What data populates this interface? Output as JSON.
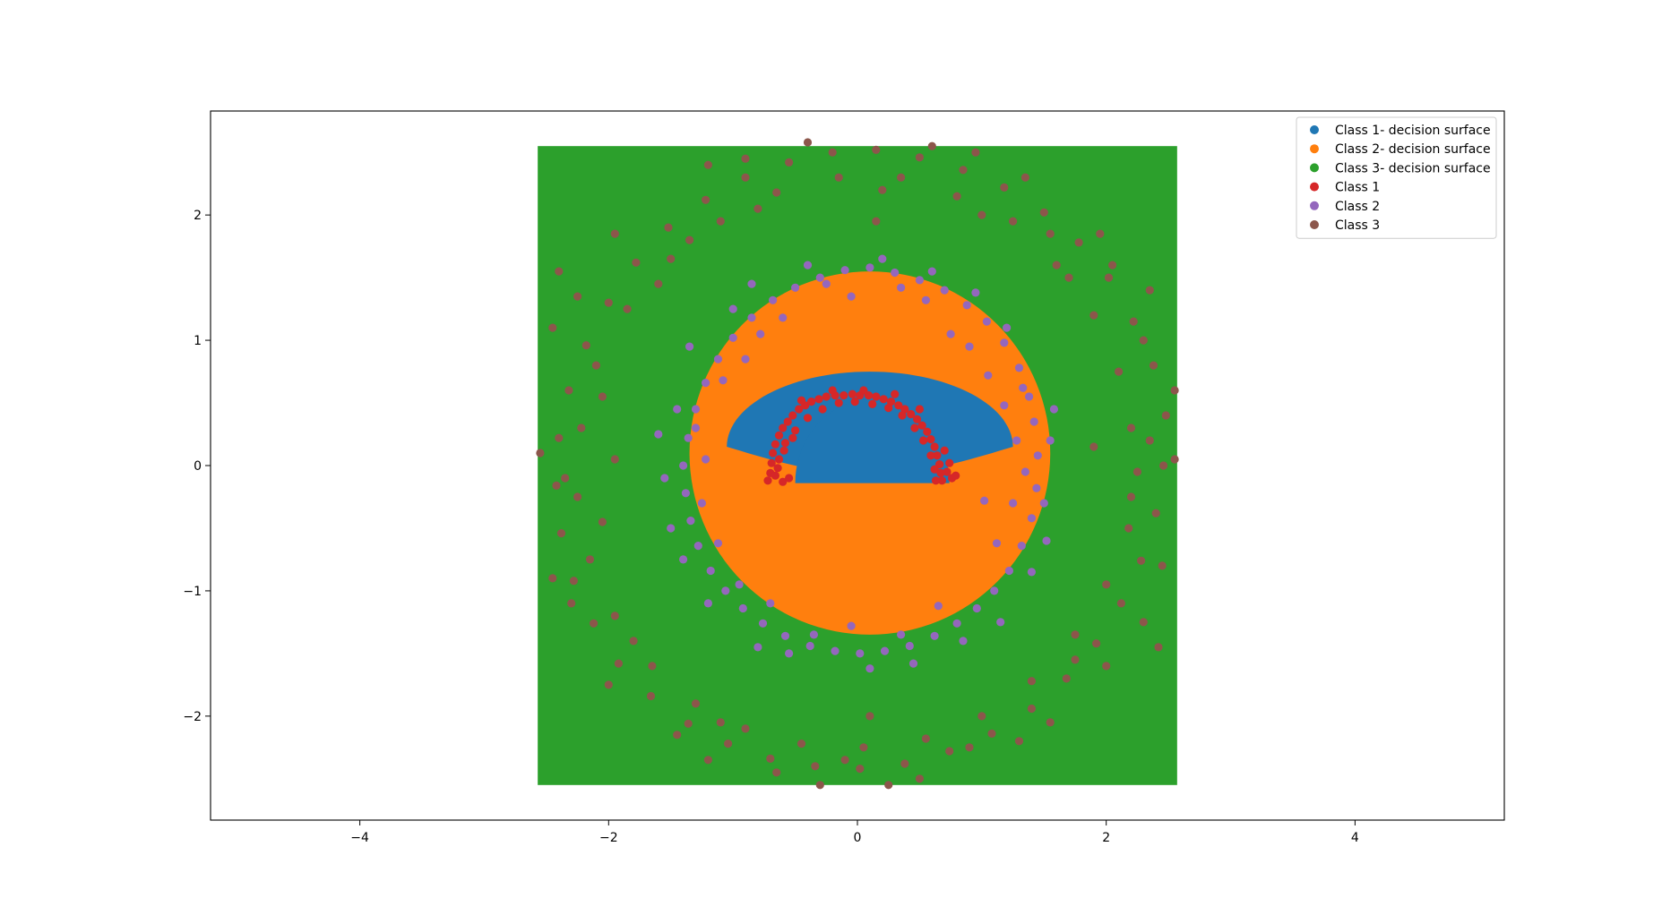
{
  "chart_data": {
    "type": "scatter",
    "title": "",
    "xlabel": "",
    "ylabel": "",
    "xlim": [
      -5.2,
      5.2
    ],
    "ylim": [
      -2.83,
      2.83
    ],
    "xticks": [
      -4,
      -2,
      0,
      2,
      4
    ],
    "yticks": [
      -2,
      -1,
      0,
      1,
      2
    ],
    "xtick_labels": [
      "−4",
      "−2",
      "0",
      "2",
      "4"
    ],
    "ytick_labels": [
      "−2",
      "−1",
      "0",
      "1",
      "2"
    ],
    "grid": false,
    "legend_position": "top-right",
    "decision_surface": {
      "extent": [
        -2.57,
        2.57,
        -2.55,
        2.55
      ],
      "class1_region": "upper half-ellipse centered (0.1, 0.15), semi-axes 1.15 x 0.58, plus central half-disk radius 0.62",
      "class2_region": "disk centered (0.1, 0.1), radius 1.45",
      "class3_region": "remainder of grid"
    },
    "series": [
      {
        "name": "Class 1- decision surface",
        "role": "surface",
        "color": "#1f77b4"
      },
      {
        "name": "Class 2- decision surface",
        "role": "surface",
        "color": "#ff7f0e"
      },
      {
        "name": "Class 3- decision surface",
        "role": "surface",
        "color": "#2ca02c"
      },
      {
        "name": "Class 1",
        "role": "points",
        "color": "#d62728",
        "points": [
          [
            -0.7,
            -0.06
          ],
          [
            -0.69,
            0.02
          ],
          [
            -0.68,
            0.1
          ],
          [
            -0.66,
            0.17
          ],
          [
            -0.63,
            0.24
          ],
          [
            -0.6,
            0.3
          ],
          [
            -0.56,
            0.35
          ],
          [
            -0.52,
            0.4
          ],
          [
            -0.47,
            0.45
          ],
          [
            -0.42,
            0.48
          ],
          [
            -0.37,
            0.51
          ],
          [
            -0.31,
            0.53
          ],
          [
            -0.25,
            0.55
          ],
          [
            -0.18,
            0.56
          ],
          [
            -0.11,
            0.56
          ],
          [
            -0.04,
            0.57
          ],
          [
            0.02,
            0.56
          ],
          [
            0.09,
            0.56
          ],
          [
            0.15,
            0.55
          ],
          [
            0.21,
            0.53
          ],
          [
            0.27,
            0.51
          ],
          [
            0.33,
            0.48
          ],
          [
            0.38,
            0.45
          ],
          [
            0.43,
            0.41
          ],
          [
            0.48,
            0.37
          ],
          [
            0.52,
            0.32
          ],
          [
            0.56,
            0.27
          ],
          [
            0.59,
            0.21
          ],
          [
            0.62,
            0.15
          ],
          [
            0.64,
            0.08
          ],
          [
            0.66,
            0.01
          ],
          [
            0.67,
            -0.06
          ],
          [
            0.68,
            -0.12
          ],
          [
            -0.72,
            -0.12
          ],
          [
            -0.6,
            -0.13
          ],
          [
            -0.55,
            -0.1
          ],
          [
            -0.63,
            0.05
          ],
          [
            -0.58,
            0.18
          ],
          [
            -0.5,
            0.28
          ],
          [
            -0.4,
            0.38
          ],
          [
            -0.28,
            0.45
          ],
          [
            -0.15,
            0.5
          ],
          [
            -0.02,
            0.51
          ],
          [
            0.12,
            0.49
          ],
          [
            0.25,
            0.46
          ],
          [
            0.36,
            0.4
          ],
          [
            0.46,
            0.3
          ],
          [
            0.53,
            0.2
          ],
          [
            0.59,
            0.08
          ],
          [
            0.62,
            -0.03
          ],
          [
            0.72,
            -0.05
          ],
          [
            0.76,
            -0.1
          ],
          [
            0.74,
            0.02
          ],
          [
            0.7,
            0.12
          ],
          [
            -0.66,
            -0.08
          ],
          [
            -0.64,
            -0.02
          ],
          [
            0.05,
            0.6
          ],
          [
            -0.2,
            0.6
          ],
          [
            0.3,
            0.57
          ],
          [
            -0.45,
            0.52
          ],
          [
            0.5,
            0.45
          ],
          [
            0.63,
            -0.12
          ],
          [
            0.79,
            -0.08
          ],
          [
            -0.59,
            0.12
          ],
          [
            -0.52,
            0.22
          ]
        ]
      },
      {
        "name": "Class 2",
        "role": "points",
        "color": "#9467bd",
        "points": [
          [
            1.45,
            0.08
          ],
          [
            1.42,
            0.35
          ],
          [
            1.38,
            0.55
          ],
          [
            1.3,
            0.78
          ],
          [
            1.18,
            0.98
          ],
          [
            1.04,
            1.15
          ],
          [
            0.88,
            1.28
          ],
          [
            0.7,
            1.4
          ],
          [
            0.5,
            1.48
          ],
          [
            0.3,
            1.54
          ],
          [
            0.1,
            1.58
          ],
          [
            -0.1,
            1.56
          ],
          [
            -0.3,
            1.5
          ],
          [
            -0.5,
            1.42
          ],
          [
            -0.68,
            1.32
          ],
          [
            -0.85,
            1.18
          ],
          [
            -1.0,
            1.02
          ],
          [
            -1.12,
            0.85
          ],
          [
            -1.22,
            0.66
          ],
          [
            -1.3,
            0.45
          ],
          [
            -1.36,
            0.22
          ],
          [
            -1.4,
            0.0
          ],
          [
            -1.38,
            -0.22
          ],
          [
            -1.34,
            -0.44
          ],
          [
            -1.28,
            -0.64
          ],
          [
            -1.18,
            -0.84
          ],
          [
            -1.06,
            -1.0
          ],
          [
            -0.92,
            -1.14
          ],
          [
            -0.76,
            -1.26
          ],
          [
            -0.58,
            -1.36
          ],
          [
            -0.38,
            -1.44
          ],
          [
            -0.18,
            -1.48
          ],
          [
            0.02,
            -1.5
          ],
          [
            0.22,
            -1.48
          ],
          [
            0.42,
            -1.44
          ],
          [
            0.62,
            -1.36
          ],
          [
            0.8,
            -1.26
          ],
          [
            0.96,
            -1.14
          ],
          [
            1.1,
            -1.0
          ],
          [
            1.22,
            -0.84
          ],
          [
            1.32,
            -0.64
          ],
          [
            1.4,
            -0.42
          ],
          [
            1.44,
            -0.18
          ],
          [
            1.55,
            0.2
          ],
          [
            1.5,
            -0.3
          ],
          [
            1.2,
            1.1
          ],
          [
            0.6,
            1.55
          ],
          [
            -0.4,
            1.6
          ],
          [
            -1.0,
            1.25
          ],
          [
            -1.45,
            0.45
          ],
          [
            -1.55,
            -0.1
          ],
          [
            -1.4,
            -0.75
          ],
          [
            -0.8,
            -1.45
          ],
          [
            0.1,
            -1.62
          ],
          [
            0.85,
            -1.4
          ],
          [
            1.4,
            -0.85
          ],
          [
            1.28,
            0.2
          ],
          [
            1.25,
            -0.3
          ],
          [
            1.05,
            0.72
          ],
          [
            0.75,
            1.05
          ],
          [
            -0.05,
            1.35
          ],
          [
            -0.6,
            1.18
          ],
          [
            -1.08,
            0.68
          ],
          [
            -1.22,
            0.05
          ],
          [
            -1.12,
            -0.62
          ],
          [
            -0.7,
            -1.1
          ],
          [
            -0.05,
            -1.28
          ],
          [
            0.65,
            -1.12
          ],
          [
            1.12,
            -0.62
          ],
          [
            1.33,
            0.62
          ],
          [
            0.95,
            1.38
          ],
          [
            0.2,
            1.65
          ],
          [
            -0.85,
            1.45
          ],
          [
            -1.35,
            0.95
          ],
          [
            -1.6,
            0.25
          ],
          [
            -1.5,
            -0.5
          ],
          [
            -1.2,
            -1.1
          ],
          [
            -0.55,
            -1.5
          ],
          [
            0.45,
            -1.58
          ],
          [
            1.15,
            -1.25
          ],
          [
            1.52,
            -0.6
          ],
          [
            1.58,
            0.45
          ],
          [
            1.18,
            0.48
          ],
          [
            1.02,
            -0.28
          ],
          [
            0.9,
            0.95
          ],
          [
            -0.9,
            0.85
          ],
          [
            -1.25,
            -0.3
          ],
          [
            -0.95,
            -0.95
          ],
          [
            0.35,
            1.42
          ],
          [
            -0.25,
            1.45
          ],
          [
            0.35,
            -1.35
          ],
          [
            -0.35,
            -1.35
          ],
          [
            1.35,
            -0.05
          ],
          [
            -1.3,
            0.3
          ],
          [
            0.55,
            1.32
          ],
          [
            -0.78,
            1.05
          ]
        ]
      },
      {
        "name": "Class 3",
        "role": "points",
        "color": "#8c564b",
        "points": [
          [
            2.55,
            0.05
          ],
          [
            2.48,
            0.4
          ],
          [
            2.38,
            0.8
          ],
          [
            2.22,
            1.15
          ],
          [
            2.02,
            1.5
          ],
          [
            1.78,
            1.78
          ],
          [
            1.5,
            2.02
          ],
          [
            1.18,
            2.22
          ],
          [
            0.85,
            2.36
          ],
          [
            0.5,
            2.46
          ],
          [
            0.15,
            2.52
          ],
          [
            -0.2,
            2.5
          ],
          [
            -0.55,
            2.42
          ],
          [
            -0.9,
            2.3
          ],
          [
            -1.22,
            2.12
          ],
          [
            -1.52,
            1.9
          ],
          [
            -1.78,
            1.62
          ],
          [
            -2.0,
            1.3
          ],
          [
            -2.18,
            0.96
          ],
          [
            -2.32,
            0.6
          ],
          [
            -2.4,
            0.22
          ],
          [
            -2.42,
            -0.16
          ],
          [
            -2.38,
            -0.54
          ],
          [
            -2.28,
            -0.92
          ],
          [
            -2.12,
            -1.26
          ],
          [
            -1.92,
            -1.58
          ],
          [
            -1.66,
            -1.84
          ],
          [
            -1.36,
            -2.06
          ],
          [
            -1.04,
            -2.22
          ],
          [
            -0.7,
            -2.34
          ],
          [
            -0.34,
            -2.4
          ],
          [
            0.02,
            -2.42
          ],
          [
            0.38,
            -2.38
          ],
          [
            0.74,
            -2.28
          ],
          [
            1.08,
            -2.14
          ],
          [
            1.4,
            -1.94
          ],
          [
            1.68,
            -1.7
          ],
          [
            1.92,
            -1.42
          ],
          [
            2.12,
            -1.1
          ],
          [
            2.28,
            -0.76
          ],
          [
            2.4,
            -0.38
          ],
          [
            2.46,
            0.0
          ],
          [
            2.2,
            0.3
          ],
          [
            2.1,
            0.75
          ],
          [
            1.9,
            1.2
          ],
          [
            1.6,
            1.6
          ],
          [
            1.25,
            1.95
          ],
          [
            0.8,
            2.15
          ],
          [
            0.35,
            2.3
          ],
          [
            -0.15,
            2.3
          ],
          [
            -0.65,
            2.18
          ],
          [
            -1.1,
            1.95
          ],
          [
            -1.5,
            1.65
          ],
          [
            -1.85,
            1.25
          ],
          [
            -2.1,
            0.8
          ],
          [
            -2.22,
            0.3
          ],
          [
            -2.25,
            -0.25
          ],
          [
            -2.15,
            -0.75
          ],
          [
            -1.95,
            -1.2
          ],
          [
            -1.65,
            -1.6
          ],
          [
            -1.3,
            -1.9
          ],
          [
            -0.9,
            -2.1
          ],
          [
            -0.45,
            -2.22
          ],
          [
            0.05,
            -2.25
          ],
          [
            0.55,
            -2.18
          ],
          [
            1.0,
            -2.0
          ],
          [
            1.4,
            -1.72
          ],
          [
            1.75,
            -1.35
          ],
          [
            2.0,
            -0.95
          ],
          [
            2.18,
            -0.5
          ],
          [
            2.25,
            -0.05
          ],
          [
            2.35,
            1.4
          ],
          [
            1.95,
            1.85
          ],
          [
            1.35,
            2.3
          ],
          [
            0.6,
            2.55
          ],
          [
            -0.4,
            2.58
          ],
          [
            -1.2,
            2.4
          ],
          [
            -1.95,
            1.85
          ],
          [
            -2.45,
            1.1
          ],
          [
            -2.55,
            0.1
          ],
          [
            -2.45,
            -0.9
          ],
          [
            -2.0,
            -1.75
          ],
          [
            -1.2,
            -2.35
          ],
          [
            -0.3,
            -2.55
          ],
          [
            0.5,
            -2.5
          ],
          [
            1.3,
            -2.2
          ],
          [
            2.0,
            -1.6
          ],
          [
            2.45,
            -0.8
          ],
          [
            2.55,
            0.6
          ],
          [
            2.3,
            1.0
          ],
          [
            1.7,
            1.5
          ],
          [
            1.0,
            2.0
          ],
          [
            0.2,
            2.2
          ],
          [
            -0.8,
            2.05
          ],
          [
            -1.6,
            1.45
          ],
          [
            -2.05,
            0.55
          ],
          [
            -2.05,
            -0.45
          ],
          [
            -1.8,
            -1.4
          ],
          [
            -1.1,
            -2.05
          ],
          [
            -0.1,
            -2.35
          ],
          [
            0.9,
            -2.25
          ],
          [
            1.75,
            -1.55
          ],
          [
            2.2,
            -0.25
          ],
          [
            2.05,
            1.6
          ],
          [
            1.55,
            1.85
          ],
          [
            -1.35,
            1.8
          ],
          [
            -2.25,
            1.35
          ],
          [
            -2.3,
            -1.1
          ],
          [
            -1.45,
            -2.15
          ],
          [
            1.55,
            -2.05
          ],
          [
            2.3,
            -1.25
          ],
          [
            0.25,
            -2.55
          ],
          [
            -0.65,
            -2.45
          ],
          [
            1.9,
            0.15
          ],
          [
            -1.95,
            0.05
          ],
          [
            0.15,
            1.95
          ],
          [
            0.1,
            -2.0
          ],
          [
            2.35,
            0.2
          ],
          [
            -2.35,
            -0.1
          ],
          [
            -0.9,
            2.45
          ],
          [
            0.95,
            2.5
          ],
          [
            2.42,
            -1.45
          ],
          [
            -2.4,
            1.55
          ]
        ]
      }
    ]
  }
}
